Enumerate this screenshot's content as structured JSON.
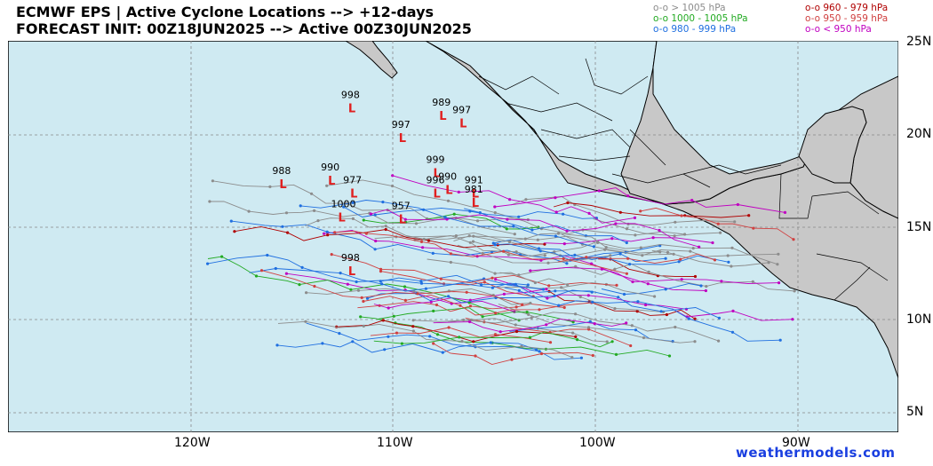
{
  "header": {
    "title_line1": "ECMWF EPS | Active Cyclone Locations --> +12-days",
    "title_line2": "FORECAST INIT: 00Z18JUN2025 --> Active 00Z30JUN2025"
  },
  "legend": {
    "left": [
      {
        "label": "o-o > 1005 hPa",
        "color": "#8c8c8c"
      },
      {
        "label": "o-o 1000 - 1005 hPa",
        "color": "#22aa22"
      },
      {
        "label": "o-o 980 - 999 hPa",
        "color": "#1f6fe0"
      }
    ],
    "right": [
      {
        "label": "o-o 960 - 979 hPa",
        "color": "#b00000"
      },
      {
        "label": "o-o 950 - 959 hPa",
        "color": "#d04040"
      },
      {
        "label": "o-o < 950 hPa",
        "color": "#c000c0"
      }
    ]
  },
  "axes": {
    "lat_labels": [
      "25N",
      "20N",
      "15N",
      "10N",
      "5N"
    ],
    "lon_labels": [
      "120W",
      "110W",
      "100W",
      "90W"
    ]
  },
  "storm_labels": [
    {
      "text": "998",
      "lon": -112.1,
      "lat": 21.8
    },
    {
      "text": "997",
      "lon": -109.6,
      "lat": 20.2
    },
    {
      "text": "989",
      "lon": -107.6,
      "lat": 21.4
    },
    {
      "text": "997",
      "lon": -106.6,
      "lat": 21.0
    },
    {
      "text": "999",
      "lon": -107.9,
      "lat": 18.3
    },
    {
      "text": "988",
      "lon": -115.5,
      "lat": 17.7
    },
    {
      "text": "990",
      "lon": -113.1,
      "lat": 17.9
    },
    {
      "text": "977",
      "lon": -112.0,
      "lat": 17.2
    },
    {
      "text": "996",
      "lon": -107.9,
      "lat": 17.2
    },
    {
      "text": "990",
      "lon": -107.3,
      "lat": 17.4
    },
    {
      "text": "991",
      "lon": -106.0,
      "lat": 17.2
    },
    {
      "text": "981",
      "lon": -106.0,
      "lat": 16.7
    },
    {
      "text": "1000",
      "lon": -112.6,
      "lat": 15.9
    },
    {
      "text": "957",
      "lon": -109.6,
      "lat": 15.8
    },
    {
      "text": "998",
      "lon": -112.1,
      "lat": 13.0
    }
  ],
  "brand": "weathermodels.com"
}
